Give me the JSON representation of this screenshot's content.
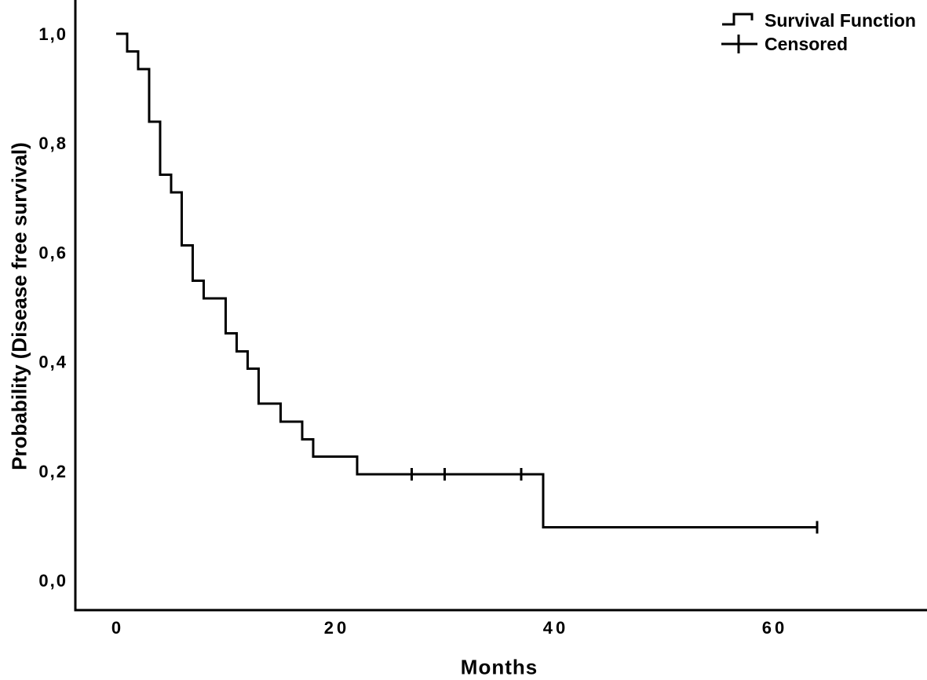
{
  "chart_data": {
    "type": "line",
    "subtype": "kaplan-meier-step-function",
    "xlabel": "Months",
    "ylabel": "Probability (Disease free survival)",
    "x_ticks": [
      0,
      20,
      40,
      60
    ],
    "x_tick_labels": [
      "0",
      "20",
      "40",
      "60"
    ],
    "y_ticks": [
      1.0,
      0.8,
      0.6,
      0.4,
      0.2,
      0.0
    ],
    "y_tick_labels": [
      "1,0",
      "0,8",
      "0,6",
      "0,4",
      "0,2",
      "0,0"
    ],
    "decimal_separator": ",",
    "xlim": [
      -3.8,
      74
    ],
    "ylim": [
      -0.055,
      1.06
    ],
    "grid": false,
    "legend_position": "top-right",
    "legend": [
      {
        "label": "Survival Function",
        "marker": "step-line"
      },
      {
        "label": "Censored",
        "marker": "plus"
      }
    ],
    "series": [
      {
        "name": "Survival Function",
        "type": "step",
        "steps": [
          [
            0,
            1.0
          ],
          [
            1,
            0.968
          ],
          [
            2,
            0.935
          ],
          [
            3,
            0.839
          ],
          [
            4,
            0.742
          ],
          [
            5,
            0.71
          ],
          [
            6,
            0.613
          ],
          [
            7,
            0.548
          ],
          [
            8,
            0.516
          ],
          [
            10,
            0.452
          ],
          [
            11,
            0.419
          ],
          [
            12,
            0.387
          ],
          [
            13,
            0.323
          ],
          [
            15,
            0.29
          ],
          [
            17,
            0.258
          ],
          [
            18,
            0.226
          ],
          [
            22,
            0.194
          ],
          [
            39,
            0.097
          ]
        ],
        "end_time": 64
      }
    ],
    "censored_points": [
      [
        27,
        0.194
      ],
      [
        30,
        0.194
      ],
      [
        37,
        0.194
      ],
      [
        64,
        0.097
      ]
    ],
    "line_color": "#000000",
    "background": "#ffffff"
  }
}
